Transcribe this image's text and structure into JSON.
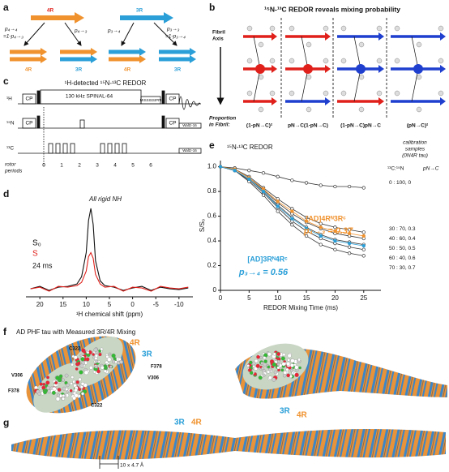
{
  "panels": {
    "a": {
      "label": "a",
      "top": [
        "4R",
        "3R"
      ],
      "probabilities": [
        "p₄→₄",
        "=1-p₄→₃",
        "p₄→₃",
        "p₃→₄",
        "p₃→₃",
        "=1-p₃→₄"
      ],
      "bottom": [
        "4R",
        "3R",
        "4R",
        "3R"
      ]
    },
    "b": {
      "label": "b",
      "title": "¹⁵N-¹³C REDOR reveals mixing probability",
      "axis": [
        "Fibril",
        "Axis"
      ],
      "proportion": [
        "Proportion",
        "in Fibril:"
      ],
      "terms": [
        "(1-pN→C)²",
        "pN→C(1-pN→C)",
        "(1-pN→C)pN→C",
        "(pN→C)²"
      ]
    },
    "c": {
      "label": "c",
      "title": "¹H-detected ¹⁵N-¹³C REDOR",
      "channels": [
        "¹H",
        "¹⁵N",
        "¹³C"
      ],
      "decoupling": "130 kHz SPINAL-64",
      "mixing": "MISSISSIPPI",
      "cp": [
        "CP",
        "CP",
        "CP",
        "CP"
      ],
      "waltz": [
        "Waltz-16",
        "Waltz-16"
      ],
      "rotor_label": [
        "rotor",
        "periods"
      ],
      "rotor_periods": [
        0,
        1,
        2,
        3,
        4,
        5,
        6
      ]
    },
    "d": {
      "label": "d"
    },
    "e": {
      "label": "e",
      "calibration_header": [
        "calibration",
        "samples",
        "(0N4R tau)"
      ],
      "ratio_header": "¹³C:¹⁵N",
      "p_header": "pN→C"
    },
    "f": {
      "label": "f",
      "title": "AD PHF tau with Measured 3R/4R Mixing",
      "residues": [
        "C322",
        "V306",
        "F378",
        "F378",
        "V306",
        "C322"
      ],
      "isoforms": [
        "4R",
        "3R",
        "3R",
        "4R"
      ]
    },
    "g": {
      "label": "g",
      "isoforms": [
        "3R",
        "4R"
      ],
      "scale_bar": "10 x 4.7 Å"
    }
  },
  "chart_data": [
    {
      "type": "line",
      "title": "¹⁵N-¹³C REDOR",
      "xlabel": "REDOR Mixing Time (ms)",
      "ylabel": "S/S₀",
      "x": [
        0,
        2.5,
        5,
        7.5,
        10,
        12.5,
        15,
        17.5,
        20,
        22.5,
        25
      ],
      "xlim": [
        0,
        28
      ],
      "xticks": [
        0,
        5,
        10,
        15,
        20,
        25
      ],
      "ylim": [
        0,
        1.05
      ],
      "yticks": [
        0,
        0.2,
        0.4,
        0.6,
        0.8,
        {
          "value": 1,
          "label": "1.0"
        }
      ],
      "markers": true,
      "series": [
        {
          "name": "0 : 100,   0",
          "color": "#333333",
          "values": [
            1,
            0.99,
            0.97,
            0.95,
            0.92,
            0.89,
            0.87,
            0.85,
            0.84,
            0.84,
            0.83
          ]
        },
        {
          "name": "30 : 70,   0.3",
          "color": "#333333",
          "values": [
            1,
            0.98,
            0.92,
            0.83,
            0.74,
            0.66,
            0.59,
            0.54,
            0.51,
            0.49,
            0.47
          ]
        },
        {
          "name": "40 : 60,   0.4",
          "color": "#333333",
          "values": [
            1,
            0.98,
            0.91,
            0.81,
            0.71,
            0.62,
            0.55,
            0.5,
            0.46,
            0.44,
            0.42
          ]
        },
        {
          "name": "50 : 50,   0.5",
          "color": "#333333",
          "values": [
            1,
            0.97,
            0.9,
            0.8,
            0.69,
            0.59,
            0.51,
            0.45,
            0.41,
            0.39,
            0.37
          ]
        },
        {
          "name": "60 : 40,   0.6",
          "color": "#333333",
          "values": [
            1,
            0.97,
            0.89,
            0.79,
            0.67,
            0.56,
            0.48,
            0.42,
            0.38,
            0.35,
            0.33
          ]
        },
        {
          "name": "70 : 30,   0.7",
          "color": "#333333",
          "values": [
            1,
            0.97,
            0.88,
            0.77,
            0.64,
            0.53,
            0.44,
            0.37,
            0.33,
            0.3,
            0.28
          ]
        },
        {
          "name": "[AD]4Rᴺ3Rᶜ",
          "color": "#f0922e",
          "values": [
            1,
            0.98,
            0.91,
            0.82,
            0.72,
            0.64,
            0.56,
            0.51,
            0.48,
            0.46,
            0.44
          ]
        },
        {
          "name": "[AD]3Rᴺ4Rᶜ",
          "color": "#2a9fd8",
          "values": [
            1,
            0.97,
            0.9,
            0.8,
            0.68,
            0.58,
            0.5,
            0.44,
            0.4,
            0.38,
            0.36
          ]
        }
      ],
      "annotations": [
        "p₄→₃ = 0.37",
        "p₃→₄ = 0.56"
      ]
    },
    {
      "type": "line",
      "xlabel": "¹H chemical shift (ppm)",
      "x": [
        22,
        20,
        18,
        16,
        14,
        12,
        11,
        10,
        9.5,
        9,
        8.5,
        8,
        7,
        6,
        4,
        2,
        0,
        -2,
        -4,
        -6,
        -8,
        -10,
        -12
      ],
      "xlim": [
        23,
        -13
      ],
      "xticks": [
        20,
        15,
        10,
        5,
        0,
        -5,
        -10
      ],
      "ylim": [
        -0.1,
        1.05
      ],
      "markers": false,
      "series": [
        {
          "name": "S₀",
          "color": "#111111",
          "values": [
            0,
            0.03,
            -0.02,
            0.02,
            0.03,
            0.06,
            0.15,
            0.45,
            0.85,
            1,
            0.8,
            0.35,
            0.1,
            0.04,
            0.02,
            -0.02,
            0.01,
            0.03,
            -0.02,
            0.02,
            0,
            -0.01,
            0.01
          ]
        },
        {
          "name": "S",
          "color": "#e0201b",
          "values": [
            0,
            0.02,
            -0.03,
            0.03,
            0.02,
            0.04,
            0.08,
            0.22,
            0.4,
            0.45,
            0.38,
            0.18,
            0.06,
            0.02,
            0.03,
            -0.03,
            0.02,
            0.01,
            -0.03,
            0.03,
            0.01,
            0,
            0.02
          ]
        }
      ],
      "annotations": [
        "All rigid NH",
        "24 ms"
      ]
    }
  ]
}
